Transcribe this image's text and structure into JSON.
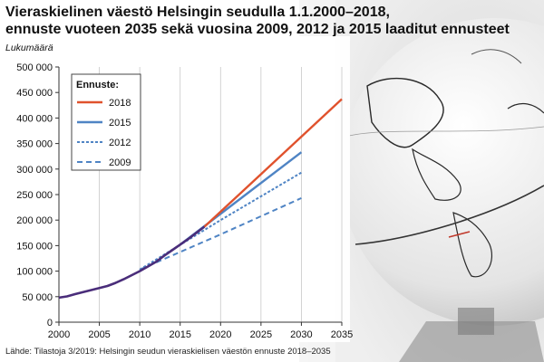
{
  "title_line1": "Vieraskielinen väestö Helsingin seudulla 1.1.2000–2018,",
  "title_line2": "ennuste vuoteen 2035 sekä vuosina 2009,  2012 ja 2015 laaditut ennusteet",
  "source": "Lähde: Tilastoja 3/2019: Helsingin seudun vieraskielisen väestön ennuste 2018–2035",
  "chart_data": {
    "type": "line",
    "title": "",
    "ylabel": "Lukumäärä",
    "xlabel": "",
    "xlim": [
      2000,
      2035
    ],
    "ylim": [
      0,
      500000
    ],
    "x_ticks": [
      "2000",
      "2005",
      "2010",
      "2015",
      "2020",
      "2025",
      "2030",
      "2035"
    ],
    "y_ticks": [
      "0",
      "50 000",
      "100 000",
      "150 000",
      "200 000",
      "250 000",
      "300 000",
      "350 000",
      "400 000",
      "450 000",
      "500 000"
    ],
    "x_tick_values": [
      2000,
      2005,
      2010,
      2015,
      2020,
      2025,
      2030,
      2035
    ],
    "y_tick_values": [
      0,
      50000,
      100000,
      150000,
      200000,
      250000,
      300000,
      350000,
      400000,
      450000,
      500000
    ],
    "grid": "vertical",
    "legend_title": "Ennuste:",
    "legend_position": "top-left",
    "observed": {
      "color": "#4a2d7a",
      "x": [
        2000,
        2001,
        2002,
        2003,
        2004,
        2005,
        2006,
        2007,
        2008,
        2009,
        2010,
        2011,
        2012,
        2013,
        2014,
        2015,
        2016,
        2017,
        2018
      ],
      "y": [
        48000,
        50500,
        55000,
        59000,
        63000,
        67000,
        71000,
        77000,
        84000,
        92000,
        100000,
        109000,
        118000,
        130000,
        141000,
        152000,
        163000,
        175000,
        187000
      ]
    },
    "series": [
      {
        "name": "2018",
        "color": "#e0522d",
        "dash": "solid",
        "x": [
          2018,
          2035
        ],
        "y": [
          187000,
          437000
        ]
      },
      {
        "name": "2015",
        "color": "#4f84c4",
        "dash": "solid",
        "x": [
          2015,
          2030
        ],
        "y": [
          152000,
          333000
        ]
      },
      {
        "name": "2012",
        "color": "#4f84c4",
        "dash": "fine",
        "x": [
          2010,
          2020,
          2030
        ],
        "y": [
          103000,
          200000,
          293000
        ]
      },
      {
        "name": "2009",
        "color": "#4f84c4",
        "dash": "coarse",
        "x": [
          2010,
          2020,
          2030
        ],
        "y": [
          103000,
          172000,
          243000
        ]
      }
    ]
  }
}
